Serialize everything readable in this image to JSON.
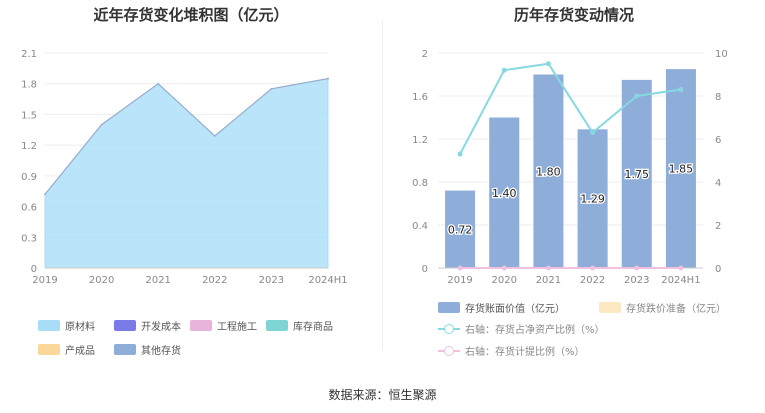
{
  "source": "数据来源：恒生聚源",
  "chart_data": [
    {
      "type": "area",
      "title": "近年存货变化堆积图（亿元）",
      "categories": [
        "2019",
        "2020",
        "2021",
        "2022",
        "2023",
        "2024H1"
      ],
      "ylim": [
        0,
        2.1
      ],
      "yticks": [
        "0",
        "0.3",
        "0.6",
        "0.9",
        "1.2",
        "1.5",
        "1.8",
        "2.1"
      ],
      "grid": true,
      "legend_position": "bottom",
      "series": [
        {
          "name": "原材料",
          "color": "#a8ddf8",
          "values": [
            0.72,
            1.4,
            1.8,
            1.29,
            1.75,
            1.85
          ]
        },
        {
          "name": "开发成本",
          "color": "#7b7be8",
          "values": [
            0,
            0,
            0,
            0,
            0,
            0
          ]
        },
        {
          "name": "工程施工",
          "color": "#e8b4dc",
          "values": [
            0,
            0,
            0,
            0,
            0,
            0
          ]
        },
        {
          "name": "库存商品",
          "color": "#7fd4d4",
          "values": [
            0,
            0,
            0,
            0,
            0,
            0
          ]
        },
        {
          "name": "产成品",
          "color": "#fcd79a",
          "values": [
            0,
            0,
            0,
            0,
            0,
            0
          ]
        },
        {
          "name": "其他存货",
          "color": "#8eadd9",
          "values": [
            0,
            0,
            0,
            0,
            0,
            0
          ]
        }
      ]
    },
    {
      "type": "bar",
      "title": "历年存货变动情况",
      "categories": [
        "2019",
        "2020",
        "2021",
        "2022",
        "2023",
        "2024H1"
      ],
      "ylim": [
        0,
        2
      ],
      "yticks": [
        "0",
        "0.4",
        "0.8",
        "1.2",
        "1.6",
        "2"
      ],
      "y2lim": [
        0,
        10
      ],
      "y2ticks": [
        "0",
        "2",
        "4",
        "6",
        "8",
        "10"
      ],
      "legend_position": "bottom",
      "bar_series": [
        {
          "name": "存货账面价值（亿元）",
          "color": "#8eadd9",
          "values": [
            0.72,
            1.4,
            1.8,
            1.29,
            1.75,
            1.85
          ],
          "labels": [
            "0.72",
            "1.40",
            "1.80",
            "1.29",
            "1.75",
            "1.85"
          ]
        },
        {
          "name": "存货跌价准备（亿元）",
          "color": "#fde8c4",
          "values": [
            0,
            0,
            0,
            0,
            0,
            0
          ]
        }
      ],
      "line_series": [
        {
          "name": "右轴：存货占净资产比例（%）",
          "color": "#86d9e0",
          "axis": "right",
          "values": [
            5.3,
            9.2,
            9.5,
            6.3,
            8.0,
            8.3
          ]
        },
        {
          "name": "右轴：存货计提比例（%）",
          "color": "#f0c0e0",
          "axis": "right",
          "values": [
            0,
            0,
            0,
            0,
            0,
            0
          ]
        }
      ]
    }
  ]
}
